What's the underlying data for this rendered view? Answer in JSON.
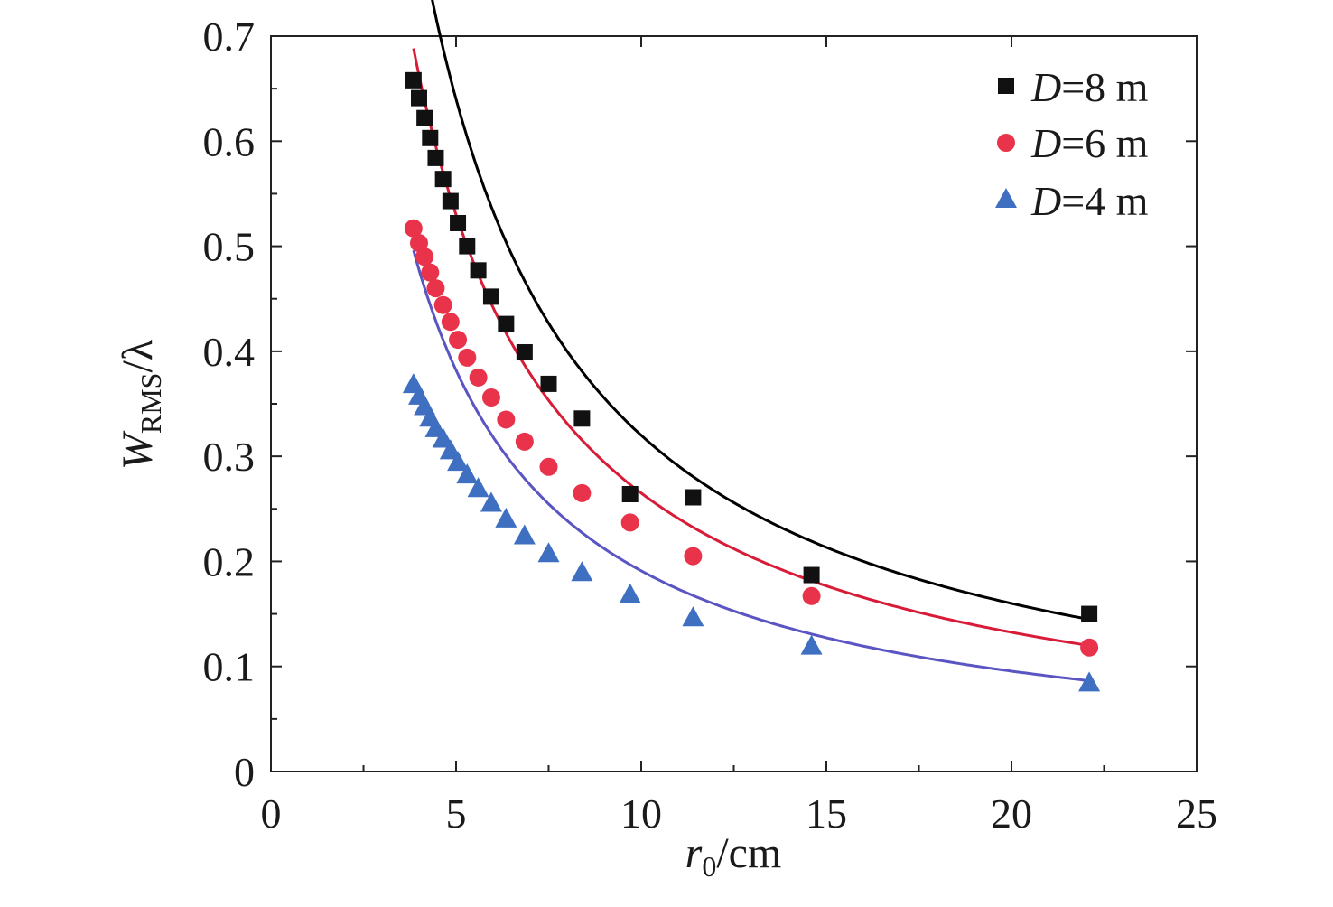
{
  "chart_data": {
    "type": "scatter",
    "x_axis": {
      "label_var": "r",
      "label_sub": "0",
      "label_unit": "/cm",
      "range": [
        0,
        25
      ],
      "major_ticks": [
        0,
        5,
        10,
        15,
        20,
        25
      ],
      "minor_step": 2.5
    },
    "y_axis": {
      "label_var": "W",
      "label_sub": "RMS",
      "label_rest": "/λ",
      "range": [
        0,
        0.7
      ],
      "major_ticks": [
        0,
        0.1,
        0.2,
        0.3,
        0.4,
        0.5,
        0.6,
        0.7
      ],
      "tick_labels": [
        "0",
        "0.1",
        "0.2",
        "0.3",
        "0.4",
        "0.5",
        "0.6",
        "0.7"
      ],
      "minor_step": 0.05
    },
    "x_tick_labels": [
      "0",
      "5",
      "10",
      "15",
      "20",
      "25"
    ],
    "grid": false,
    "legend_position": "top-right",
    "series": [
      {
        "name_var": "D",
        "name_rest": "=8 m",
        "marker": "square",
        "color": "#111111",
        "fit_color": "#000000",
        "fit_coeff": 3.2,
        "points": [
          [
            3.85,
            0.658
          ],
          [
            4.0,
            0.641
          ],
          [
            4.15,
            0.622
          ],
          [
            4.3,
            0.603
          ],
          [
            4.45,
            0.584
          ],
          [
            4.65,
            0.564
          ],
          [
            4.85,
            0.543
          ],
          [
            5.05,
            0.522
          ],
          [
            5.3,
            0.5
          ],
          [
            5.6,
            0.477
          ],
          [
            5.95,
            0.452
          ],
          [
            6.35,
            0.426
          ],
          [
            6.85,
            0.399
          ],
          [
            7.5,
            0.369
          ],
          [
            8.4,
            0.336
          ],
          [
            9.7,
            0.264
          ],
          [
            11.4,
            0.261
          ],
          [
            14.6,
            0.187
          ],
          [
            22.1,
            0.15
          ]
        ]
      },
      {
        "name_var": "D",
        "name_rest": "=6 m",
        "marker": "circle",
        "color": "#e8334a",
        "fit_color": "#d81c38",
        "fit_coeff": 2.65,
        "points": [
          [
            3.85,
            0.517
          ],
          [
            4.0,
            0.503
          ],
          [
            4.15,
            0.49
          ],
          [
            4.3,
            0.475
          ],
          [
            4.45,
            0.46
          ],
          [
            4.65,
            0.444
          ],
          [
            4.85,
            0.428
          ],
          [
            5.05,
            0.411
          ],
          [
            5.3,
            0.394
          ],
          [
            5.6,
            0.375
          ],
          [
            5.95,
            0.356
          ],
          [
            6.35,
            0.335
          ],
          [
            6.85,
            0.314
          ],
          [
            7.5,
            0.29
          ],
          [
            8.4,
            0.265
          ],
          [
            9.7,
            0.237
          ],
          [
            11.4,
            0.205
          ],
          [
            14.6,
            0.167
          ],
          [
            22.1,
            0.118
          ]
        ]
      },
      {
        "name_var": "D",
        "name_rest": "=4 m",
        "marker": "triangle",
        "color": "#3e6fc0",
        "fit_color": "#5a55c2",
        "fit_coeff": 1.91,
        "points": [
          [
            3.85,
            0.368
          ],
          [
            4.0,
            0.357
          ],
          [
            4.15,
            0.347
          ],
          [
            4.3,
            0.336
          ],
          [
            4.45,
            0.326
          ],
          [
            4.65,
            0.316
          ],
          [
            4.85,
            0.305
          ],
          [
            5.05,
            0.294
          ],
          [
            5.3,
            0.282
          ],
          [
            5.6,
            0.269
          ],
          [
            5.95,
            0.255
          ],
          [
            6.35,
            0.24
          ],
          [
            6.85,
            0.224
          ],
          [
            7.5,
            0.207
          ],
          [
            8.4,
            0.189
          ],
          [
            9.7,
            0.168
          ],
          [
            11.4,
            0.146
          ],
          [
            14.6,
            0.119
          ],
          [
            22.1,
            0.084
          ]
        ]
      }
    ]
  }
}
